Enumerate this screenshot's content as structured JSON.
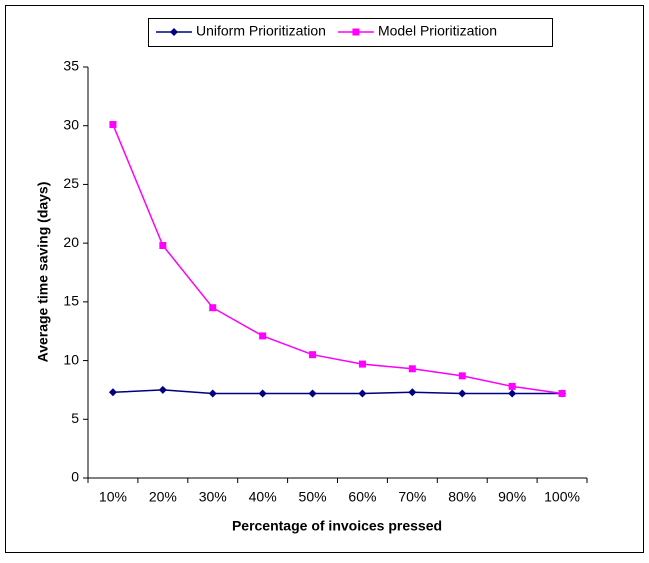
{
  "chart_data": {
    "type": "line",
    "categories": [
      "10%",
      "20%",
      "30%",
      "40%",
      "50%",
      "60%",
      "70%",
      "80%",
      "90%",
      "100%"
    ],
    "series": [
      {
        "name": "Uniform Prioritization",
        "color": "#000080",
        "marker": "diamond",
        "values": [
          7.3,
          7.5,
          7.2,
          7.2,
          7.2,
          7.2,
          7.3,
          7.2,
          7.2,
          7.2
        ]
      },
      {
        "name": "Model Prioritization",
        "color": "#ff00ff",
        "marker": "square",
        "values": [
          30.1,
          19.8,
          14.5,
          12.1,
          10.5,
          9.7,
          9.3,
          8.7,
          7.8,
          7.2
        ]
      }
    ],
    "xlabel": "Percentage of invoices pressed",
    "ylabel": "Average time saving (days)",
    "ylim": [
      0,
      35
    ],
    "yticks": [
      0,
      5,
      10,
      15,
      20,
      25,
      30,
      35
    ],
    "legend": "top",
    "grid": false
  }
}
